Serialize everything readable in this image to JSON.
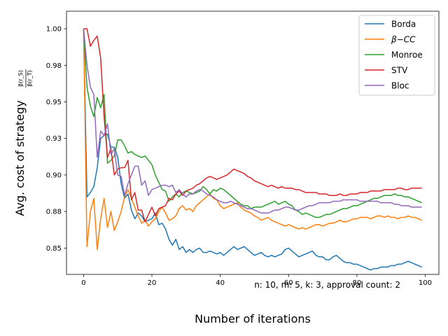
{
  "chart_data": {
    "type": "line",
    "title": "",
    "xlabel": "Number of iterations",
    "ylabel_prefix": "Avg. cost of strategy ",
    "ylabel_fraction_num": "β(r_S)",
    "ylabel_fraction_den": "β(r_T)",
    "xlim": [
      -5,
      104
    ],
    "ylim": [
      0.832,
      1.012
    ],
    "x_ticks": [
      0,
      20,
      40,
      60,
      80,
      100
    ],
    "y_ticks": [
      0.85,
      0.875,
      0.9,
      0.925,
      0.95,
      0.975,
      1.0
    ],
    "y_tick_labels": [
      "0.85",
      "0.88",
      "0.90",
      "0.93",
      "0.95",
      "0.98",
      "1.00"
    ],
    "grid": false,
    "legend_position": "top-right",
    "annotation": "n: 10, m: 5, k: 3, approval count: 2",
    "colors": {
      "Borda": "#1f77b4",
      "beta-CC": "#ff7f0e",
      "Monroe": "#2ca02c",
      "STV": "#d62728",
      "Bloc": "#9467bd"
    },
    "series": [
      {
        "name": "Borda",
        "label_main": "Borda",
        "label_sub": "",
        "color": "#1f77b4",
        "values": [
          1.0,
          0.885,
          0.888,
          0.892,
          0.905,
          0.925,
          0.927,
          0.928,
          0.919,
          0.919,
          0.912,
          0.894,
          0.884,
          0.887,
          0.876,
          0.87,
          0.874,
          0.872,
          0.868,
          0.869,
          0.87,
          0.874,
          0.866,
          0.867,
          0.863,
          0.856,
          0.852,
          0.856,
          0.849,
          0.851,
          0.847,
          0.849,
          0.847,
          0.849,
          0.85,
          0.847,
          0.847,
          0.848,
          0.847,
          0.846,
          0.847,
          0.845,
          0.847,
          0.849,
          0.851,
          0.849,
          0.85,
          0.851,
          0.849,
          0.847,
          0.845,
          0.846,
          0.847,
          0.845,
          0.844,
          0.845,
          0.844,
          0.845,
          0.846,
          0.849,
          0.85,
          0.848,
          0.846,
          0.844,
          0.845,
          0.846,
          0.847,
          0.848,
          0.845,
          0.844,
          0.844,
          0.842,
          0.842,
          0.844,
          0.845,
          0.843,
          0.841,
          0.84,
          0.84,
          0.839,
          0.839,
          0.838,
          0.837,
          0.836,
          0.835,
          0.836,
          0.836,
          0.837,
          0.837,
          0.837,
          0.838,
          0.838,
          0.839,
          0.839,
          0.84,
          0.841,
          0.84,
          0.839,
          0.838,
          0.837
        ]
      },
      {
        "name": "β-CC",
        "label_main": "β",
        "label_sub": "−CC",
        "color": "#ff7f0e",
        "values": [
          1.0,
          0.851,
          0.875,
          0.884,
          0.849,
          0.87,
          0.884,
          0.864,
          0.875,
          0.862,
          0.868,
          0.875,
          0.885,
          0.89,
          0.884,
          0.878,
          0.872,
          0.867,
          0.869,
          0.865,
          0.868,
          0.87,
          0.875,
          0.878,
          0.874,
          0.869,
          0.87,
          0.872,
          0.877,
          0.879,
          0.876,
          0.877,
          0.875,
          0.879,
          0.881,
          0.883,
          0.885,
          0.887,
          0.884,
          0.883,
          0.879,
          0.877,
          0.878,
          0.879,
          0.88,
          0.881,
          0.878,
          0.876,
          0.875,
          0.874,
          0.872,
          0.871,
          0.869,
          0.87,
          0.871,
          0.869,
          0.868,
          0.867,
          0.866,
          0.865,
          0.866,
          0.865,
          0.864,
          0.863,
          0.864,
          0.863,
          0.864,
          0.865,
          0.866,
          0.866,
          0.865,
          0.866,
          0.867,
          0.867,
          0.868,
          0.869,
          0.868,
          0.868,
          0.869,
          0.87,
          0.87,
          0.871,
          0.871,
          0.871,
          0.87,
          0.871,
          0.872,
          0.872,
          0.871,
          0.872,
          0.871,
          0.871,
          0.87,
          0.871,
          0.871,
          0.872,
          0.871,
          0.871,
          0.87,
          0.869
        ]
      },
      {
        "name": "Monroe",
        "label_main": "Monroe",
        "label_sub": "",
        "color": "#2ca02c",
        "values": [
          1.0,
          0.96,
          0.947,
          0.94,
          0.953,
          0.946,
          0.955,
          0.908,
          0.91,
          0.913,
          0.924,
          0.924,
          0.92,
          0.915,
          0.916,
          0.914,
          0.913,
          0.912,
          0.913,
          0.91,
          0.907,
          0.9,
          0.895,
          0.89,
          0.889,
          0.882,
          0.885,
          0.887,
          0.885,
          0.888,
          0.889,
          0.888,
          0.887,
          0.888,
          0.889,
          0.892,
          0.89,
          0.887,
          0.89,
          0.889,
          0.891,
          0.89,
          0.888,
          0.886,
          0.884,
          0.882,
          0.88,
          0.879,
          0.879,
          0.877,
          0.878,
          0.878,
          0.878,
          0.879,
          0.88,
          0.881,
          0.882,
          0.88,
          0.881,
          0.882,
          0.88,
          0.879,
          0.876,
          0.875,
          0.873,
          0.874,
          0.873,
          0.872,
          0.871,
          0.871,
          0.872,
          0.873,
          0.873,
          0.874,
          0.875,
          0.876,
          0.877,
          0.877,
          0.878,
          0.879,
          0.879,
          0.88,
          0.881,
          0.882,
          0.883,
          0.884,
          0.884,
          0.885,
          0.886,
          0.886,
          0.886,
          0.887,
          0.886,
          0.886,
          0.885,
          0.885,
          0.884,
          0.883,
          0.882,
          0.881
        ]
      },
      {
        "name": "STV",
        "label_main": "STV",
        "label_sub": "",
        "color": "#d62728",
        "values": [
          1.0,
          1.0,
          0.988,
          0.992,
          0.995,
          0.98,
          0.94,
          0.912,
          0.918,
          0.9,
          0.904,
          0.905,
          0.905,
          0.91,
          0.883,
          0.888,
          0.876,
          0.876,
          0.868,
          0.873,
          0.878,
          0.872,
          0.877,
          0.878,
          0.879,
          0.884,
          0.883,
          0.887,
          0.889,
          0.886,
          0.889,
          0.89,
          0.891,
          0.893,
          0.894,
          0.896,
          0.898,
          0.899,
          0.898,
          0.897,
          0.898,
          0.899,
          0.9,
          0.902,
          0.904,
          0.903,
          0.902,
          0.901,
          0.899,
          0.898,
          0.896,
          0.895,
          0.894,
          0.893,
          0.892,
          0.893,
          0.892,
          0.891,
          0.892,
          0.891,
          0.891,
          0.891,
          0.89,
          0.89,
          0.889,
          0.888,
          0.888,
          0.888,
          0.888,
          0.887,
          0.887,
          0.887,
          0.886,
          0.886,
          0.886,
          0.887,
          0.886,
          0.886,
          0.887,
          0.887,
          0.887,
          0.888,
          0.888,
          0.888,
          0.889,
          0.889,
          0.889,
          0.889,
          0.89,
          0.89,
          0.89,
          0.89,
          0.891,
          0.891,
          0.89,
          0.89,
          0.891,
          0.891,
          0.891,
          0.891
        ]
      },
      {
        "name": "Bloc",
        "label_main": "Bloc",
        "label_sub": "",
        "color": "#9467bd",
        "values": [
          1.0,
          0.975,
          0.96,
          0.955,
          0.912,
          0.93,
          0.927,
          0.935,
          0.914,
          0.918,
          0.9,
          0.899,
          0.886,
          0.894,
          0.9,
          0.906,
          0.906,
          0.893,
          0.896,
          0.886,
          0.89,
          0.891,
          0.892,
          0.893,
          0.893,
          0.892,
          0.893,
          0.888,
          0.89,
          0.887,
          0.885,
          0.887,
          0.887,
          0.889,
          0.89,
          0.889,
          0.887,
          0.886,
          0.885,
          0.883,
          0.882,
          0.881,
          0.881,
          0.882,
          0.881,
          0.88,
          0.879,
          0.878,
          0.877,
          0.877,
          0.876,
          0.875,
          0.874,
          0.874,
          0.874,
          0.875,
          0.876,
          0.876,
          0.877,
          0.878,
          0.878,
          0.877,
          0.876,
          0.876,
          0.877,
          0.878,
          0.879,
          0.879,
          0.88,
          0.881,
          0.881,
          0.881,
          0.881,
          0.882,
          0.882,
          0.882,
          0.883,
          0.883,
          0.883,
          0.883,
          0.883,
          0.882,
          0.882,
          0.882,
          0.882,
          0.882,
          0.882,
          0.881,
          0.881,
          0.881,
          0.881,
          0.88,
          0.88,
          0.879,
          0.879,
          0.879,
          0.878,
          0.878,
          0.878,
          0.878
        ]
      }
    ]
  }
}
